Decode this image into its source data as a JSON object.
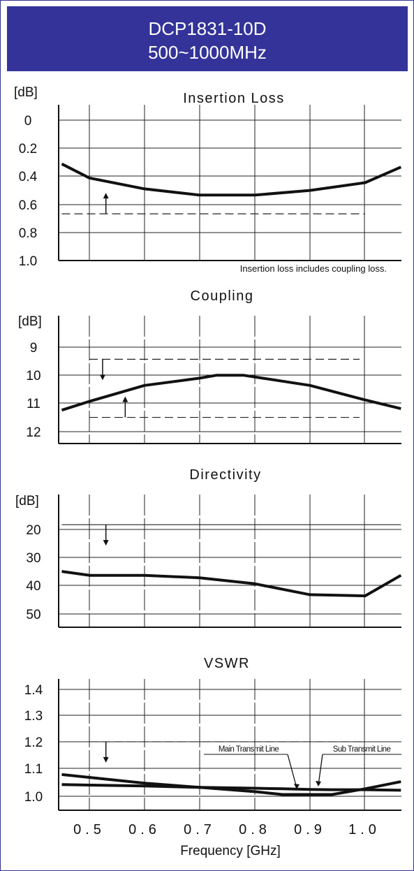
{
  "header": {
    "model": "DCP1831-10D",
    "band": "500~1000MHz",
    "bg_color": "#333399"
  },
  "frequency_axis": {
    "label": "Frequency [GHz]",
    "tick_labels": [
      "0.5",
      "0.6",
      "0.7",
      "0.8",
      "0.9",
      "1.0"
    ]
  },
  "chart_data": [
    {
      "type": "line",
      "title": "Insertion Loss",
      "ylabel": "[dB]",
      "y_ticks": [
        "0",
        "0.2",
        "0.4",
        "0.6",
        "0.8",
        "1.0"
      ],
      "ylim": [
        0,
        1.0
      ],
      "y_inverted": true,
      "xlim": [
        0.45,
        1.065
      ],
      "x": [
        0.45,
        0.5,
        0.6,
        0.7,
        0.8,
        0.9,
        1.0,
        1.065
      ],
      "series": [
        {
          "values": [
            0.38,
            0.47,
            0.54,
            0.58,
            0.58,
            0.55,
            0.5,
            0.4
          ]
        }
      ],
      "limit": {
        "value": 0.7,
        "x_range": [
          0.45,
          1.0
        ],
        "arrow_x": 0.53,
        "arrow_dir": "up"
      },
      "note": "Insertion loss includes coupling loss.",
      "grid": true
    },
    {
      "type": "line",
      "title": "Coupling",
      "ylabel": "[dB]",
      "y_ticks": [
        "9",
        "10",
        "11",
        "12"
      ],
      "ylim": [
        8.0,
        12.4
      ],
      "y_inverted": true,
      "xlim": [
        0.45,
        1.065
      ],
      "x": [
        0.45,
        0.5,
        0.6,
        0.7,
        0.73,
        0.78,
        0.9,
        1.0,
        1.065
      ],
      "series": [
        {
          "values": [
            11.25,
            10.95,
            10.4,
            10.15,
            10.05,
            10.05,
            10.4,
            10.9,
            11.2
          ]
        }
      ],
      "limits": [
        {
          "value": 9.5,
          "x_range": [
            0.5,
            0.99
          ],
          "arrow_x": 0.524,
          "arrow_dir": "down"
        },
        {
          "value": 11.5,
          "x_range": [
            0.5,
            0.99
          ],
          "arrow_x": 0.565,
          "arrow_dir": "up"
        }
      ],
      "grid": true
    },
    {
      "type": "line",
      "title": "Directivity",
      "ylabel": "[dB]",
      "y_ticks": [
        "20",
        "30",
        "40",
        "50"
      ],
      "ylim": [
        10,
        54
      ],
      "y_inverted": true,
      "xlim": [
        0.45,
        1.065
      ],
      "x": [
        0.45,
        0.5,
        0.6,
        0.7,
        0.8,
        0.9,
        1.0,
        1.065
      ],
      "series": [
        {
          "values": [
            35.5,
            36.8,
            36.8,
            37.6,
            39.6,
            43.2,
            43.6,
            36.8
          ]
        }
      ],
      "limit": {
        "value": 20,
        "x_range": [
          0.45,
          1.065
        ],
        "arrow_x": 0.53,
        "arrow_dir": "down"
      },
      "grid": true
    },
    {
      "type": "line",
      "title": "VSWR",
      "ylabel": "",
      "y_ticks": [
        "1.4",
        "1.3",
        "1.2",
        "1.1",
        "1.0"
      ],
      "ylim": [
        0.96,
        1.42
      ],
      "y_inverted": false,
      "xlim": [
        0.45,
        1.065
      ],
      "x": [
        0.45,
        0.5,
        0.6,
        0.7,
        0.8,
        0.85,
        0.9,
        0.94,
        1.0,
        1.065
      ],
      "series": [
        {
          "name": "Main Transmit Line",
          "values": [
            1.085,
            1.075,
            1.055,
            1.04,
            1.025,
            1.015,
            1.015,
            1.015,
            1.035,
            1.06
          ]
        },
        {
          "name": "Sub Transmit Line",
          "values": [
            1.05,
            1.048,
            1.045,
            1.04,
            1.037,
            1.035,
            1.033,
            1.032,
            1.032,
            1.03
          ]
        }
      ],
      "limit": {
        "value": 1.2,
        "x_range": [
          0.5,
          1.0
        ],
        "arrow_x": 0.53,
        "arrow_dir": "down"
      },
      "grid": true
    }
  ]
}
